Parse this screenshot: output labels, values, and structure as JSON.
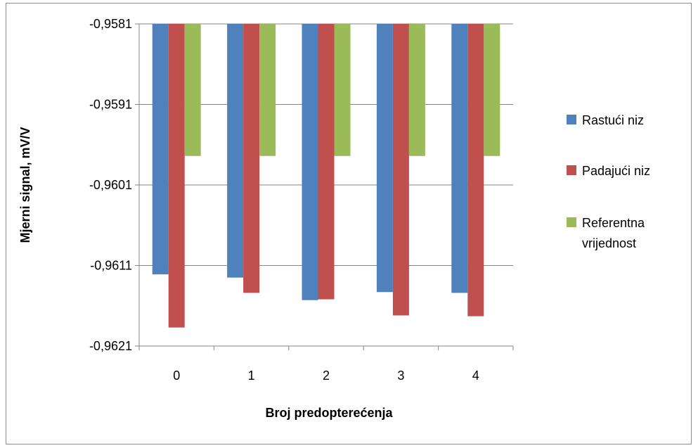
{
  "chart_data": {
    "type": "bar",
    "xlabel": "Broj predopterećenja",
    "ylabel": "Mjerni signal, mV/V",
    "categories": [
      "0",
      "1",
      "2",
      "3",
      "4"
    ],
    "y_ticks": [
      "-0,9581",
      "-0,9591",
      "-0,9601",
      "-0,9611",
      "-0,9621"
    ],
    "y_tick_values": [
      -0.9581,
      -0.9591,
      -0.9601,
      -0.9611,
      -0.9621
    ],
    "ylim": [
      -0.9621,
      -0.9581
    ],
    "baseline": -0.9581,
    "grid": true,
    "legend_position": "right",
    "series": [
      {
        "name": "Rastući niz",
        "color": "#4f81bd",
        "values": [
          -0.96121,
          -0.96125,
          -0.96153,
          -0.96143,
          -0.96144
        ]
      },
      {
        "name": "Padajući niz",
        "color": "#c0504d",
        "values": [
          -0.96187,
          -0.96144,
          -0.96152,
          -0.96172,
          -0.96173
        ]
      },
      {
        "name": "Referentna vrijednost",
        "color": "#9bbb59",
        "values": [
          -0.95974,
          -0.95974,
          -0.95974,
          -0.95974,
          -0.95974
        ]
      }
    ],
    "legend_lines": [
      [
        "Rastući niz"
      ],
      [
        "Padajući niz"
      ],
      [
        "Referentna",
        "vrijednost"
      ]
    ]
  }
}
